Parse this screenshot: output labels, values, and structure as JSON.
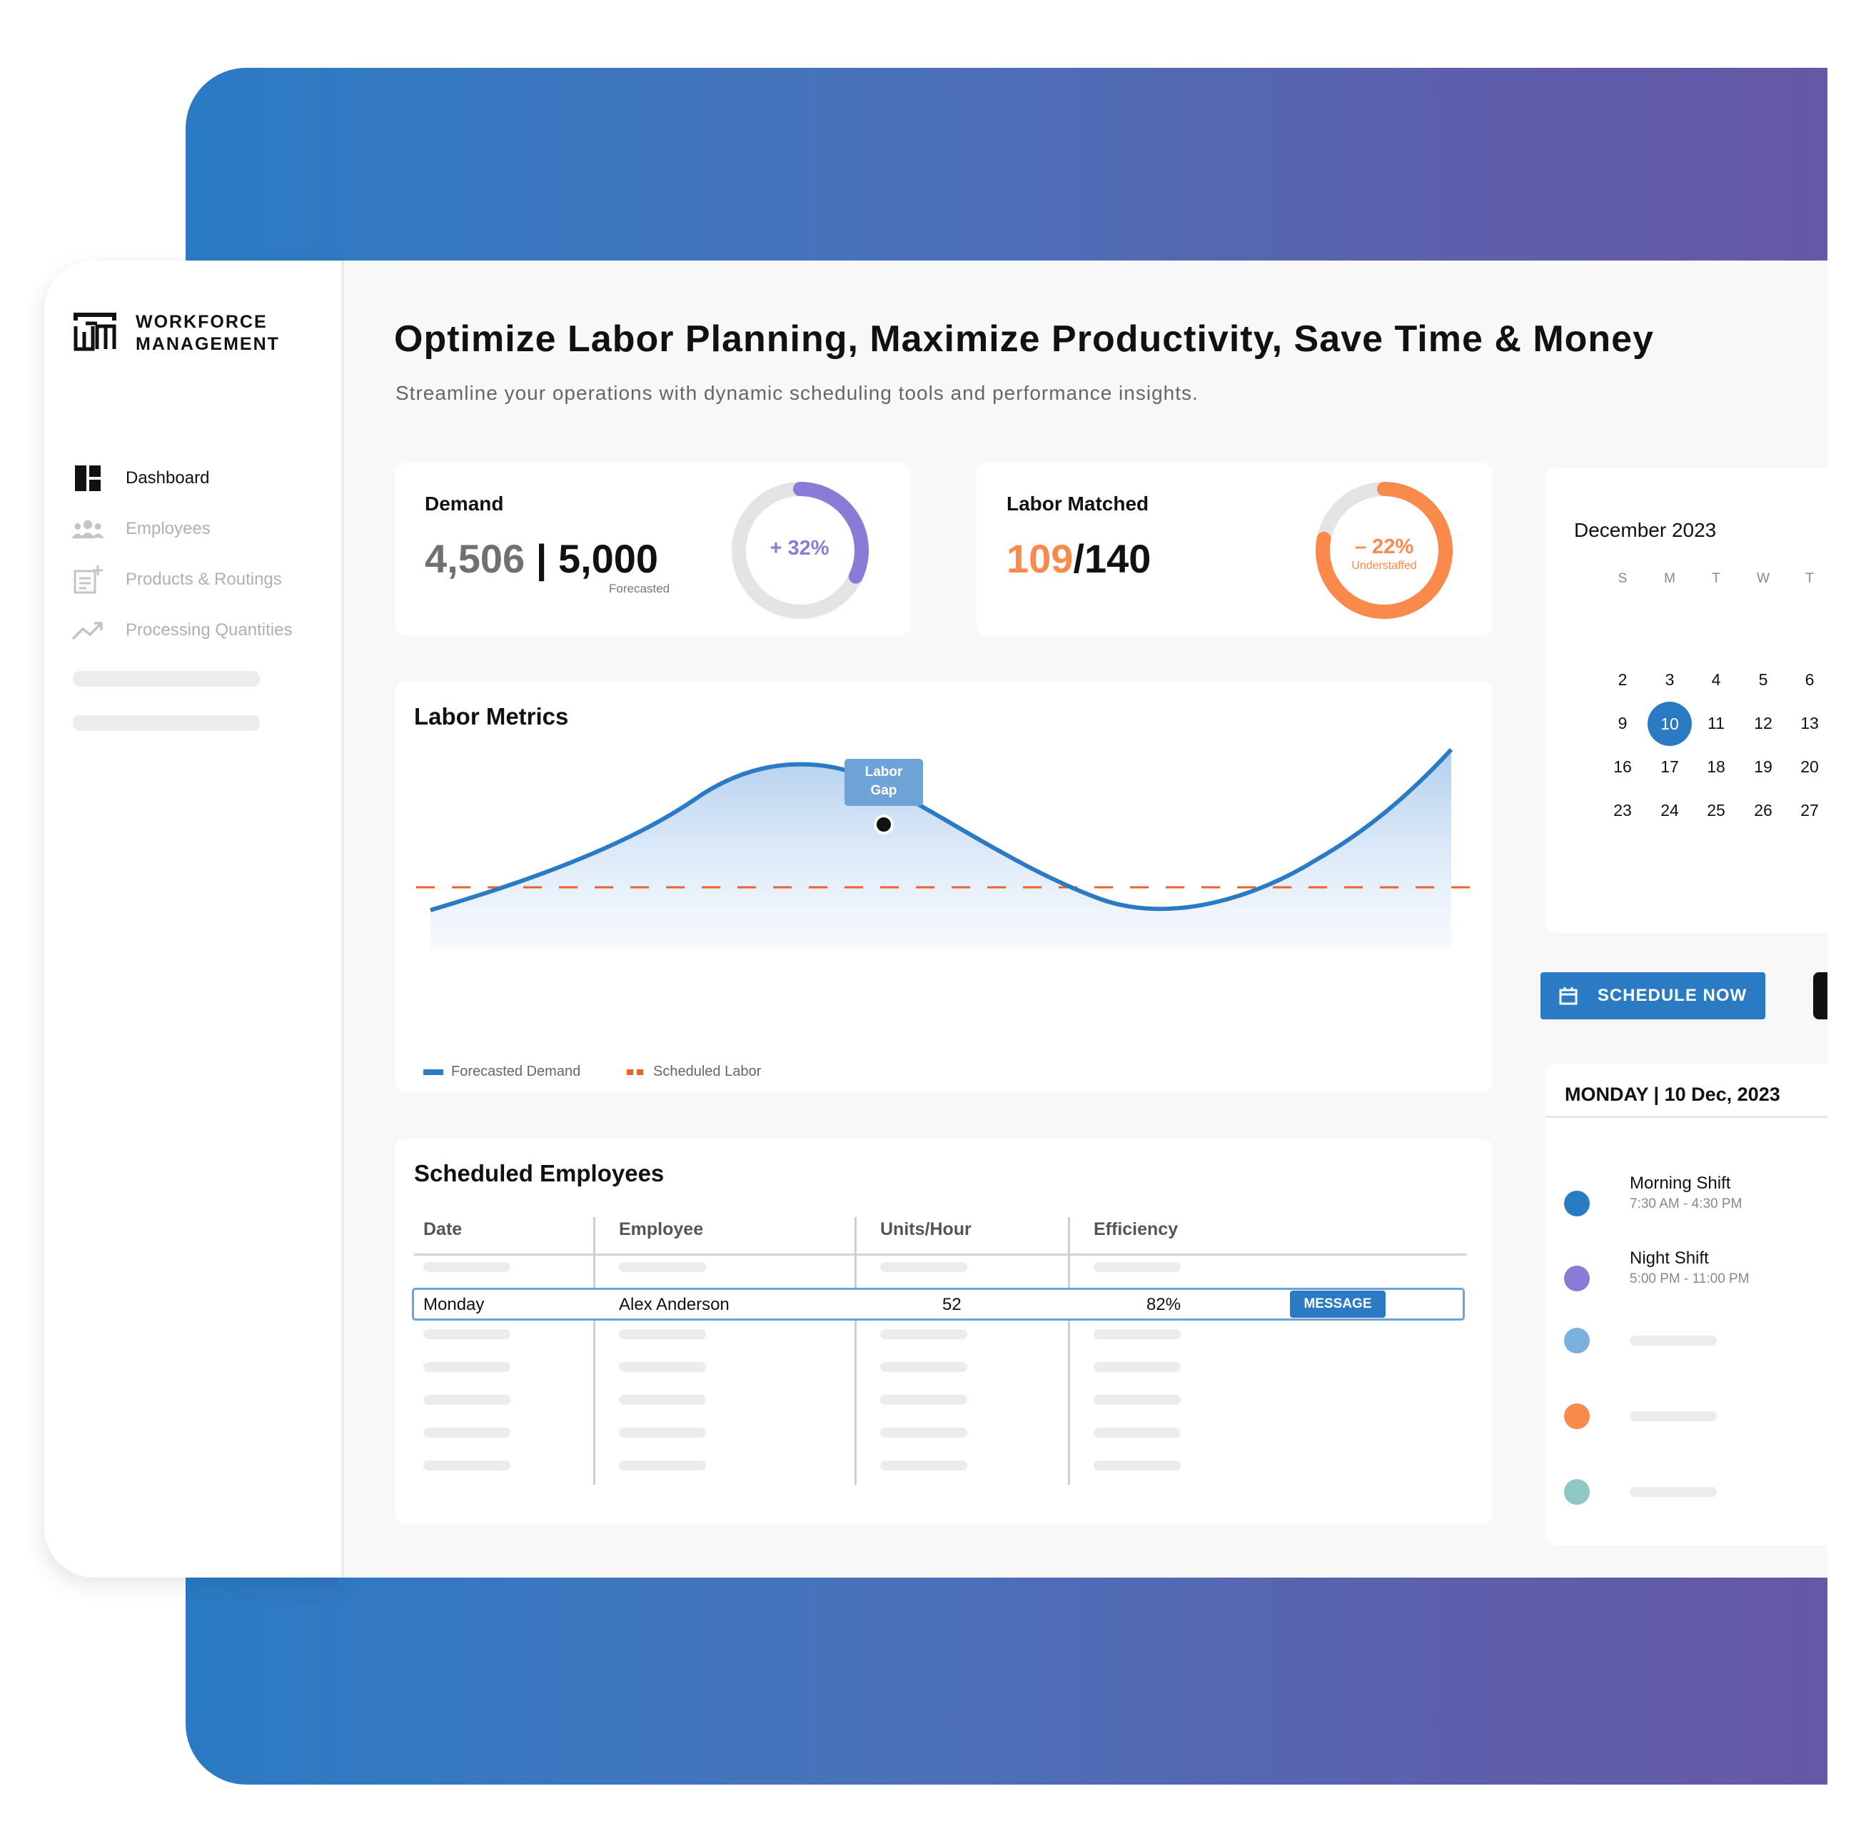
{
  "brand": {
    "line1": "WORKFORCE",
    "line2": "MANAGEMENT"
  },
  "nav": [
    {
      "label": "Dashboard",
      "active": true,
      "icon": "dashboard-icon"
    },
    {
      "label": "Employees",
      "active": false,
      "icon": "people-icon"
    },
    {
      "label": "Products & Routings",
      "active": false,
      "icon": "document-add-icon"
    },
    {
      "label": "Processing Quantities",
      "active": false,
      "icon": "trending-up-icon"
    }
  ],
  "header": {
    "title": "Optimize Labor Planning, Maximize Productivity, Save Time & Money",
    "subtitle": "Streamline your operations with dynamic scheduling tools and performance insights."
  },
  "demand": {
    "title": "Demand",
    "actual": "4,506",
    "separator": "|",
    "forecast": "5,000",
    "forecast_label": "Forecasted",
    "ring_label": "+ 32%",
    "ring_value": 0.32,
    "ring_color": "#8b7bd6"
  },
  "labor_matched": {
    "title": "Labor Matched",
    "matched": "109",
    "total": "/140",
    "ring_label": "– 22%",
    "ring_sublabel": "Understaffed",
    "ring_value": 0.78,
    "ring_color": "#f98a4b"
  },
  "chart_data": {
    "type": "line",
    "title": "Labor Metrics",
    "series": [
      {
        "name": "Forecasted Demand",
        "color": "#2a7bc4"
      },
      {
        "name": "Scheduled Labor",
        "color": "#e8642b",
        "style": "dashed"
      }
    ],
    "annotation": {
      "line1": "Labor",
      "line2": "Gap"
    },
    "grid": false,
    "legend": "bottom-left"
  },
  "employees_table": {
    "title": "Scheduled Employees",
    "columns": [
      "Date",
      "Employee",
      "Units/Hour",
      "Efficiency"
    ],
    "row": {
      "date": "Monday",
      "employee": "Alex Anderson",
      "units": "52",
      "efficiency": "82%",
      "action": "MESSAGE"
    }
  },
  "calendar": {
    "month": "December 2023",
    "dow": [
      "S",
      "M",
      "T",
      "W",
      "T"
    ],
    "weeks": [
      [
        "2",
        "3",
        "4",
        "5",
        "6"
      ],
      [
        "9",
        "10",
        "11",
        "12",
        "13"
      ],
      [
        "16",
        "17",
        "18",
        "19",
        "20"
      ],
      [
        "23",
        "24",
        "25",
        "26",
        "27"
      ]
    ],
    "selected": "10",
    "accent": "#2a7bc4"
  },
  "schedule_button": {
    "label": "SCHEDULE NOW"
  },
  "day_panel": {
    "title": "MONDAY | 10 Dec, 2023",
    "shifts": [
      {
        "name": "Morning Shift",
        "time": "7:30 AM - 4:30 PM",
        "color": "#2a7bc4"
      },
      {
        "name": "Night Shift",
        "time": "5:00 PM - 11:00 PM",
        "color": "#8b7bd6"
      }
    ],
    "placeholder_colors": [
      "#7ab0de",
      "#f98a4b",
      "#8ec7c4"
    ]
  }
}
